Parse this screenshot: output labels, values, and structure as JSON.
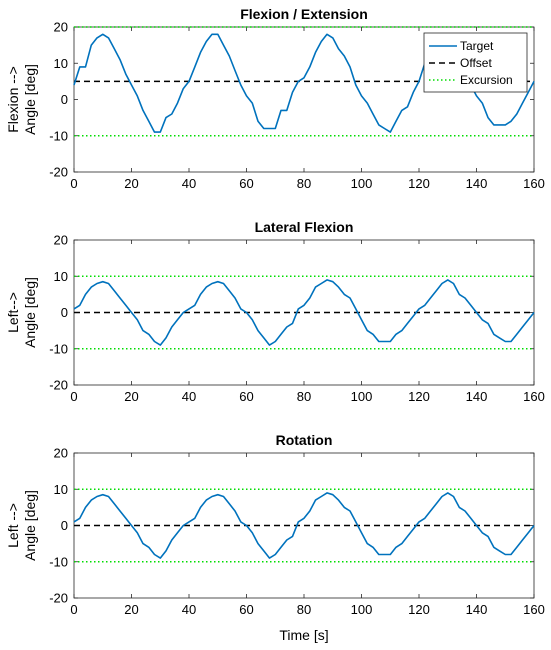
{
  "figure": {
    "xlabel": "Time [s]",
    "xlim": [
      0,
      160
    ],
    "xticks": [
      0,
      20,
      40,
      60,
      80,
      100,
      120,
      140,
      160
    ]
  },
  "legend": {
    "entries": [
      {
        "label": "Target",
        "color": "#0072BD",
        "style": "solid"
      },
      {
        "label": "Offset",
        "color": "#000000",
        "style": "dashed"
      },
      {
        "label": "Excursion",
        "color": "#00DD00",
        "style": "dotted"
      }
    ],
    "placement": "top-right"
  },
  "chart_data": [
    {
      "type": "line",
      "title": "Flexion / Extension",
      "ylabel_lines": [
        "Flexion -->",
        "Angle [deg]"
      ],
      "ylim": [
        -20,
        20
      ],
      "yticks": [
        -20,
        -10,
        0,
        10,
        20
      ],
      "offset": 5,
      "excursion": [
        -10,
        20
      ],
      "has_legend": true,
      "series": [
        {
          "name": "Target",
          "x": [
            0,
            2,
            4,
            6,
            8,
            10,
            12,
            14,
            16,
            18,
            20,
            22,
            24,
            26,
            28,
            30,
            32,
            34,
            36,
            38,
            40,
            42,
            44,
            46,
            48,
            50,
            52,
            54,
            56,
            58,
            60,
            62,
            64,
            66,
            68,
            70,
            72,
            74,
            76,
            78,
            80,
            82,
            84,
            86,
            88,
            90,
            92,
            94,
            96,
            98,
            100,
            102,
            104,
            106,
            108,
            110,
            112,
            114,
            116,
            118,
            120,
            122,
            124,
            126,
            128,
            130,
            132,
            134,
            136,
            138,
            140,
            142,
            144,
            146,
            148,
            150,
            152,
            154,
            156,
            158,
            160
          ],
          "y": [
            4,
            9,
            9,
            15,
            17,
            18,
            17,
            14,
            11,
            7,
            4,
            1,
            -3,
            -6,
            -9,
            -9,
            -5,
            -4,
            -1,
            3,
            5,
            9,
            13,
            16,
            18,
            18,
            15,
            12,
            8,
            4,
            1,
            -1,
            -6,
            -8,
            -8,
            -8,
            -3,
            -3,
            2,
            5,
            6,
            9,
            13,
            16,
            18,
            17,
            14,
            12,
            9,
            4,
            1,
            -1,
            -4,
            -7,
            -8,
            -9,
            -6,
            -3,
            -2,
            2,
            5,
            10,
            12,
            16,
            18,
            17,
            14,
            11,
            8,
            4,
            1,
            -1,
            -5,
            -7,
            -7,
            -7,
            -6,
            -4,
            -1,
            2,
            5
          ]
        }
      ]
    },
    {
      "type": "line",
      "title": "Lateral Flexion",
      "ylabel_lines": [
        "Left-->",
        "Angle [deg]"
      ],
      "ylim": [
        -20,
        20
      ],
      "yticks": [
        -20,
        -10,
        0,
        10,
        20
      ],
      "offset": 0,
      "excursion": [
        -10,
        10
      ],
      "has_legend": false,
      "series": [
        {
          "name": "Target",
          "x": [
            0,
            2,
            4,
            6,
            8,
            10,
            12,
            14,
            16,
            18,
            20,
            22,
            24,
            26,
            28,
            30,
            32,
            34,
            36,
            38,
            40,
            42,
            44,
            46,
            48,
            50,
            52,
            54,
            56,
            58,
            60,
            62,
            64,
            66,
            68,
            70,
            72,
            74,
            76,
            78,
            80,
            82,
            84,
            86,
            88,
            90,
            92,
            94,
            96,
            98,
            100,
            102,
            104,
            106,
            108,
            110,
            112,
            114,
            116,
            118,
            120,
            122,
            124,
            126,
            128,
            130,
            132,
            134,
            136,
            138,
            140,
            142,
            144,
            146,
            148,
            150,
            152,
            154,
            156,
            158,
            160
          ],
          "y": [
            1,
            2,
            5,
            7,
            8,
            8.5,
            8,
            6,
            4,
            2,
            0,
            -2,
            -5,
            -6,
            -8,
            -9,
            -7,
            -4,
            -2,
            0,
            1,
            2,
            5,
            7,
            8,
            8.5,
            8,
            6,
            4,
            1,
            0,
            -2,
            -5,
            -7,
            -9,
            -8,
            -6,
            -4,
            -3,
            1,
            2,
            4,
            7,
            8,
            9,
            8.5,
            7,
            5,
            4,
            1,
            -2,
            -5,
            -6,
            -8,
            -8,
            -8,
            -6,
            -5,
            -3,
            -1,
            1,
            2,
            4,
            6,
            8,
            9,
            8,
            5,
            4,
            2,
            0,
            -2,
            -3,
            -6,
            -7,
            -8,
            -8,
            -6,
            -4,
            -2,
            0
          ]
        }
      ]
    },
    {
      "type": "line",
      "title": "Rotation",
      "ylabel_lines": [
        "Left -->",
        "Angle [deg]"
      ],
      "ylim": [
        -20,
        20
      ],
      "yticks": [
        -20,
        -10,
        0,
        10,
        20
      ],
      "offset": 0,
      "excursion": [
        -10,
        10
      ],
      "has_legend": false,
      "series": [
        {
          "name": "Target",
          "x": [
            0,
            2,
            4,
            6,
            8,
            10,
            12,
            14,
            16,
            18,
            20,
            22,
            24,
            26,
            28,
            30,
            32,
            34,
            36,
            38,
            40,
            42,
            44,
            46,
            48,
            50,
            52,
            54,
            56,
            58,
            60,
            62,
            64,
            66,
            68,
            70,
            72,
            74,
            76,
            78,
            80,
            82,
            84,
            86,
            88,
            90,
            92,
            94,
            96,
            98,
            100,
            102,
            104,
            106,
            108,
            110,
            112,
            114,
            116,
            118,
            120,
            122,
            124,
            126,
            128,
            130,
            132,
            134,
            136,
            138,
            140,
            142,
            144,
            146,
            148,
            150,
            152,
            154,
            156,
            158,
            160
          ],
          "y": [
            1,
            2,
            5,
            7,
            8,
            8.5,
            8,
            6,
            4,
            2,
            0,
            -2,
            -5,
            -6,
            -8,
            -9,
            -7,
            -4,
            -2,
            0,
            1,
            2,
            5,
            7,
            8,
            8.5,
            8,
            6,
            4,
            1,
            0,
            -2,
            -5,
            -7,
            -9,
            -8,
            -6,
            -4,
            -3,
            1,
            2,
            4,
            7,
            8,
            9,
            8.5,
            7,
            5,
            4,
            1,
            -2,
            -5,
            -6,
            -8,
            -8,
            -8,
            -6,
            -5,
            -3,
            -1,
            1,
            2,
            4,
            6,
            8,
            9,
            8,
            5,
            4,
            2,
            0,
            -2,
            -3,
            -6,
            -7,
            -8,
            -8,
            -6,
            -4,
            -2,
            0
          ]
        }
      ]
    }
  ]
}
